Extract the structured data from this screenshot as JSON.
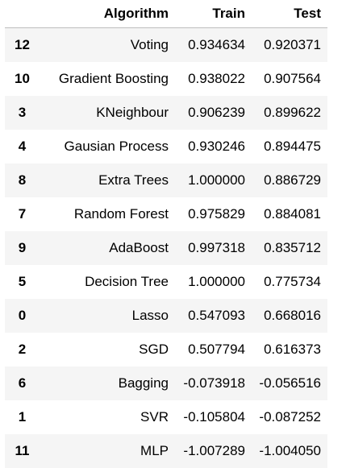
{
  "table": {
    "columns": {
      "index": "",
      "algorithm": "Algorithm",
      "train": "Train",
      "test": "Test"
    },
    "rows": [
      {
        "index": "12",
        "algorithm": "Voting",
        "train": "0.934634",
        "test": "0.920371"
      },
      {
        "index": "10",
        "algorithm": "Gradient Boosting",
        "train": "0.938022",
        "test": "0.907564"
      },
      {
        "index": "3",
        "algorithm": "KNeighbour",
        "train": "0.906239",
        "test": "0.899622"
      },
      {
        "index": "4",
        "algorithm": "Gausian Process",
        "train": "0.930246",
        "test": "0.894475"
      },
      {
        "index": "8",
        "algorithm": "Extra Trees",
        "train": "1.000000",
        "test": "0.886729"
      },
      {
        "index": "7",
        "algorithm": "Random Forest",
        "train": "0.975829",
        "test": "0.884081"
      },
      {
        "index": "9",
        "algorithm": "AdaBoost",
        "train": "0.997318",
        "test": "0.835712"
      },
      {
        "index": "5",
        "algorithm": "Decision Tree",
        "train": "1.000000",
        "test": "0.775734"
      },
      {
        "index": "0",
        "algorithm": "Lasso",
        "train": "0.547093",
        "test": "0.668016"
      },
      {
        "index": "2",
        "algorithm": "SGD",
        "train": "0.507794",
        "test": "0.616373"
      },
      {
        "index": "6",
        "algorithm": "Bagging",
        "train": "-0.073918",
        "test": "-0.056516"
      },
      {
        "index": "1",
        "algorithm": "SVR",
        "train": "-0.105804",
        "test": "-0.087252"
      },
      {
        "index": "11",
        "algorithm": "MLP",
        "train": "-1.007289",
        "test": "-1.004050"
      }
    ]
  },
  "colors": {
    "row_stripe": "#f5f5f5",
    "header_rule": "#bdbdbd",
    "text": "#000000",
    "background": "#ffffff"
  }
}
